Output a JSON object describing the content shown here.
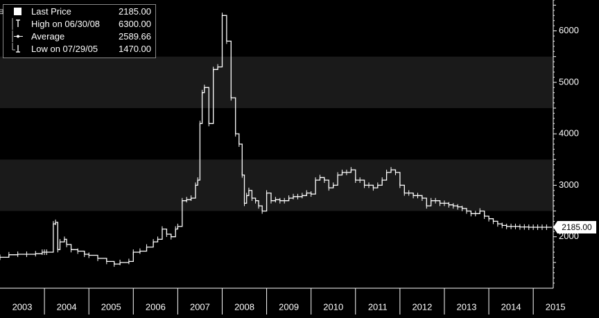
{
  "legend": {
    "last_price": {
      "label": "Last Price",
      "value": "2185.00"
    },
    "high": {
      "label": "High on 06/30/08",
      "value": "6300.00"
    },
    "average": {
      "label": "Average",
      "value": "2589.66"
    },
    "low": {
      "label": "Low on 07/29/05",
      "value": "1470.00"
    }
  },
  "last_price_tag": "2185.00",
  "colors": {
    "background": "#000000",
    "band": "#1a1a1a",
    "line": "#ffffff",
    "axis": "#ffffff",
    "tag_bg": "#ffffff",
    "tag_text": "#000000"
  },
  "chart_data": {
    "type": "line",
    "title": "",
    "xlabel": "",
    "ylabel": "",
    "x_tick_labels": [
      "2003",
      "2004",
      "2005",
      "2006",
      "2007",
      "2008",
      "2009",
      "2010",
      "2011",
      "2012",
      "2013",
      "2014",
      "2015"
    ],
    "y_ticks": [
      2000,
      3000,
      4000,
      5000,
      6000
    ],
    "ylim": [
      1000,
      6600
    ],
    "xlim": [
      2003.0,
      2015.45
    ],
    "grid": false,
    "legend_position": "top-left",
    "series": [
      {
        "name": "Last Price",
        "x": [
          2003.0,
          2003.2,
          2003.4,
          2003.6,
          2003.8,
          2003.95,
          2004.0,
          2004.05,
          2004.2,
          2004.25,
          2004.3,
          2004.35,
          2004.45,
          2004.5,
          2004.6,
          2004.75,
          2004.9,
          2005.0,
          2005.2,
          2005.4,
          2005.57,
          2005.7,
          2005.9,
          2006.0,
          2006.15,
          2006.3,
          2006.45,
          2006.55,
          2006.65,
          2006.75,
          2006.85,
          2006.95,
          2007.0,
          2007.1,
          2007.2,
          2007.3,
          2007.4,
          2007.45,
          2007.5,
          2007.55,
          2007.6,
          2007.7,
          2007.8,
          2007.9,
          2008.0,
          2008.1,
          2008.2,
          2008.3,
          2008.38,
          2008.45,
          2008.5,
          2008.55,
          2008.6,
          2008.67,
          2008.75,
          2008.82,
          2008.9,
          2009.0,
          2009.1,
          2009.2,
          2009.3,
          2009.4,
          2009.5,
          2009.6,
          2009.7,
          2009.8,
          2009.9,
          2010.0,
          2010.1,
          2010.2,
          2010.3,
          2010.4,
          2010.5,
          2010.6,
          2010.7,
          2010.8,
          2010.9,
          2011.0,
          2011.1,
          2011.2,
          2011.3,
          2011.4,
          2011.5,
          2011.6,
          2011.7,
          2011.8,
          2011.9,
          2012.0,
          2012.1,
          2012.2,
          2012.3,
          2012.4,
          2012.5,
          2012.6,
          2012.7,
          2012.8,
          2012.9,
          2013.0,
          2013.1,
          2013.2,
          2013.3,
          2013.4,
          2013.5,
          2013.6,
          2013.7,
          2013.8,
          2013.9,
          2014.0,
          2014.1,
          2014.2,
          2014.3,
          2014.4,
          2014.5,
          2014.6,
          2014.7,
          2014.8,
          2014.9,
          2015.0,
          2015.1,
          2015.2,
          2015.3
        ],
        "y": [
          1600,
          1650,
          1660,
          1660,
          1670,
          1700,
          1700,
          1700,
          2250,
          2280,
          1750,
          1900,
          1950,
          1850,
          1750,
          1720,
          1660,
          1640,
          1580,
          1520,
          1470,
          1500,
          1520,
          1700,
          1720,
          1800,
          1900,
          1950,
          2150,
          2050,
          2000,
          2150,
          2200,
          2700,
          2720,
          2750,
          3000,
          3100,
          4200,
          4800,
          4900,
          4200,
          5250,
          5300,
          6300,
          5800,
          4700,
          4000,
          3800,
          3200,
          2650,
          2800,
          2900,
          2750,
          2700,
          2600,
          2500,
          2850,
          2700,
          2720,
          2700,
          2700,
          2750,
          2780,
          2780,
          2800,
          2850,
          2830,
          3100,
          3150,
          3100,
          2950,
          3000,
          3200,
          3250,
          3250,
          3300,
          3100,
          3100,
          3000,
          3000,
          2950,
          3000,
          3100,
          3250,
          3300,
          3250,
          3000,
          2850,
          2850,
          2800,
          2800,
          2750,
          2600,
          2700,
          2700,
          2650,
          2650,
          2620,
          2600,
          2580,
          2550,
          2500,
          2450,
          2450,
          2500,
          2400,
          2350,
          2300,
          2250,
          2220,
          2200,
          2200,
          2200,
          2190,
          2190,
          2185,
          2185,
          2185,
          2185,
          2185
        ]
      }
    ]
  }
}
